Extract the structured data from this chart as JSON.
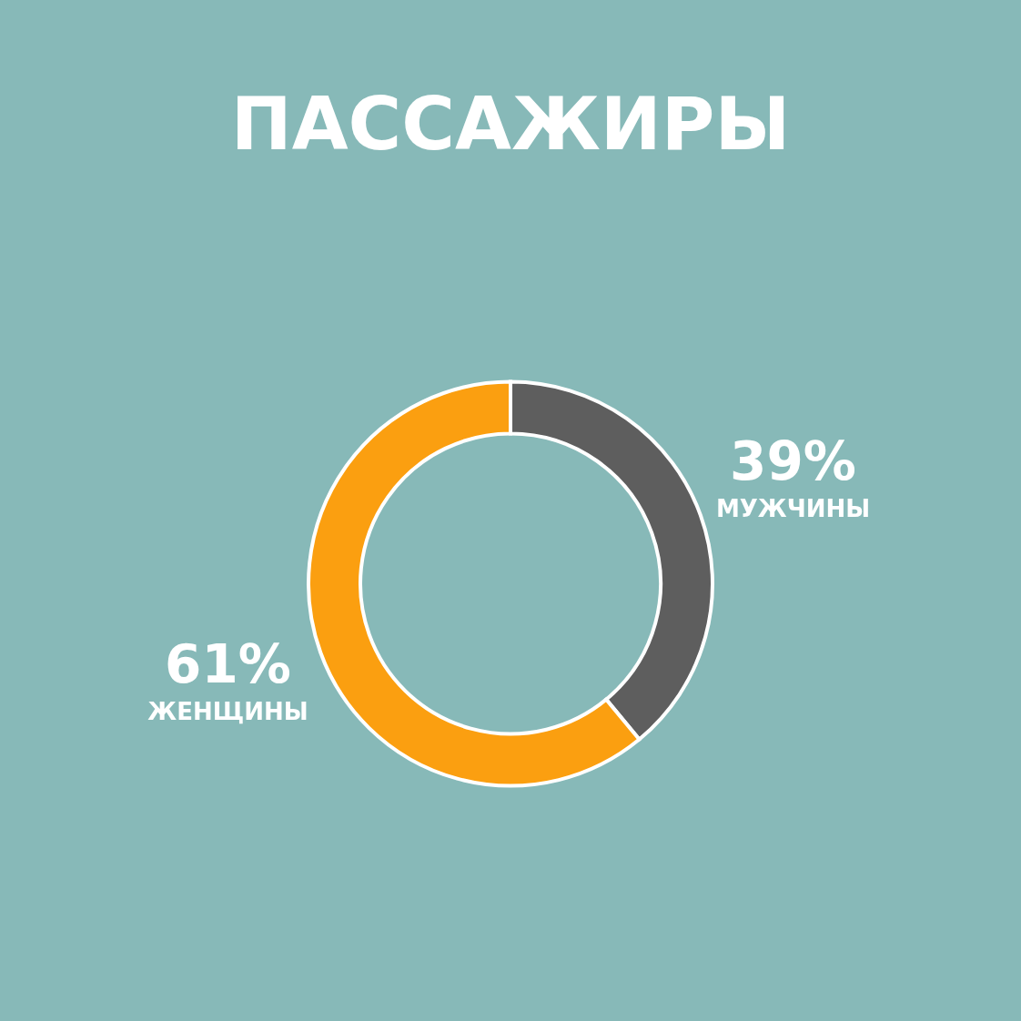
{
  "chart_data": {
    "type": "donut",
    "title": "ПАССАЖИРЫ",
    "categories": [
      "МУЖЧИНЫ",
      "ЖЕНЩИНЫ"
    ],
    "values": [
      39,
      61
    ],
    "colors": [
      "#5e5e5e",
      "#fb9f10"
    ],
    "value_labels": [
      "39%",
      "61%"
    ],
    "legend": false
  }
}
